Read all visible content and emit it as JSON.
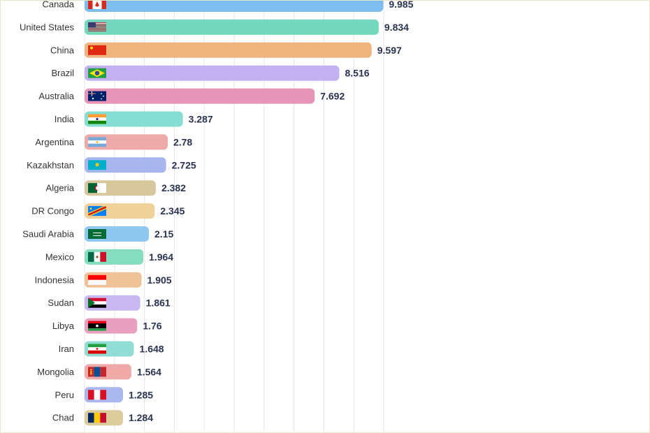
{
  "chart_data": {
    "type": "bar",
    "orientation": "horizontal",
    "title": "",
    "xlabel": "",
    "ylabel": "",
    "grid": true,
    "xlim": [
      0,
      10
    ],
    "categories": [
      "Canada",
      "United States",
      "China",
      "Brazil",
      "Australia",
      "India",
      "Argentina",
      "Kazakhstan",
      "Algeria",
      "DR Congo",
      "Saudi Arabia",
      "Mexico",
      "Indonesia",
      "Sudan",
      "Libya",
      "Iran",
      "Mongolia",
      "Peru",
      "Chad"
    ],
    "values": [
      9.985,
      9.834,
      9.597,
      8.516,
      7.692,
      3.287,
      2.78,
      2.725,
      2.382,
      2.345,
      2.15,
      1.964,
      1.905,
      1.861,
      1.76,
      1.648,
      1.564,
      1.285,
      1.284
    ],
    "value_labels": [
      "9.985",
      "9.834",
      "9.597",
      "8.516",
      "7.692",
      "3.287",
      "2.78",
      "2.725",
      "2.382",
      "2.345",
      "2.15",
      "1.964",
      "1.905",
      "1.861",
      "1.76",
      "1.648",
      "1.564",
      "1.285",
      "1.284"
    ],
    "bar_colors": [
      "#7dbdf0",
      "#74d8bd",
      "#f0b47e",
      "#c3b2f2",
      "#e595b5",
      "#86ddd1",
      "#eea9a9",
      "#a8b6ee",
      "#d6c79c",
      "#eed29a",
      "#8ec8f1",
      "#85ddc0",
      "#f0c298",
      "#c8b7f1",
      "#e7a1bf",
      "#8fddd4",
      "#efaaa8",
      "#aab8ef",
      "#dccc9c"
    ],
    "flags": [
      "canada-flag",
      "usa-flag",
      "china-flag",
      "brazil-flag",
      "australia-flag",
      "india-flag",
      "argentina-flag",
      "kazakhstan-flag",
      "algeria-flag",
      "drcongo-flag",
      "saudi-arabia-flag",
      "mexico-flag",
      "indonesia-flag",
      "sudan-flag",
      "libya-flag",
      "iran-flag",
      "mongolia-flag",
      "peru-flag",
      "chad-flag"
    ]
  }
}
